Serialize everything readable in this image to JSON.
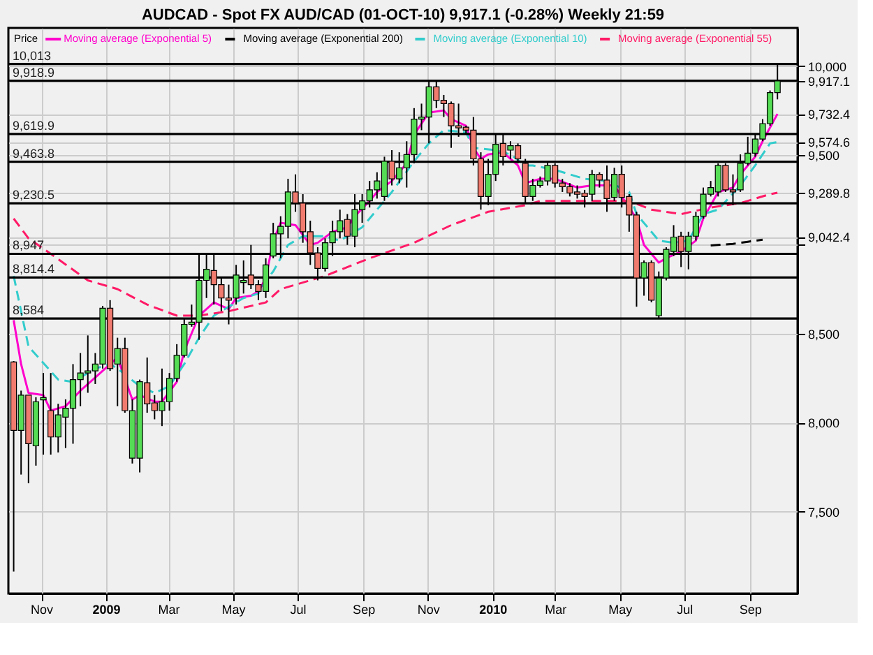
{
  "chart_data": {
    "type": "candlestick",
    "title": "AUDCAD - Spot FX AUD/CAD (01-OCT-10)  9,917.1 (-0.28%)  Weekly 21:59",
    "ylabel": "Price",
    "xlim": [
      "2008-10-01",
      "2010-10-16"
    ],
    "xticks": [
      {
        "value": "2008-11-01",
        "label": "Nov"
      },
      {
        "value": "2009-01-01",
        "label": "2009"
      },
      {
        "value": "2009-03-01",
        "label": "Mar"
      },
      {
        "value": "2009-05-01",
        "label": "May"
      },
      {
        "value": "2009-07-01",
        "label": "Jul"
      },
      {
        "value": "2009-09-01",
        "label": "Sep"
      },
      {
        "value": "2009-11-01",
        "label": "Nov"
      },
      {
        "value": "2010-01-01",
        "label": "2010"
      },
      {
        "value": "2010-03-01",
        "label": "Mar"
      },
      {
        "value": "2010-05-01",
        "label": "May"
      },
      {
        "value": "2010-07-01",
        "label": "Jul"
      },
      {
        "value": "2010-09-01",
        "label": "Sep"
      }
    ],
    "ylim": [
      7040,
      10215
    ],
    "yticks": [
      {
        "value": 7500,
        "label": "7,500"
      },
      {
        "value": 8000,
        "label": "8,000"
      },
      {
        "value": 8500,
        "label": "8,500"
      },
      {
        "value": 9000,
        "label": null
      },
      {
        "value": 9500,
        "label": "9,500"
      },
      {
        "value": 10000,
        "label": "10,000"
      },
      {
        "value": 9917.1,
        "label": "9,917.1"
      },
      {
        "value": 9732.4,
        "label": "9,732.4"
      },
      {
        "value": 9574.6,
        "label": "9,574.6"
      },
      {
        "value": 9289.8,
        "label": "9,289.8"
      },
      {
        "value": 9042.4,
        "label": "9,042.4"
      }
    ],
    "grid": true,
    "legend": "top left",
    "x": [
      "2008-10-06",
      "2008-10-13",
      "2008-10-20",
      "2008-10-27",
      "2008-11-03",
      "2008-11-10",
      "2008-11-17",
      "2008-11-24",
      "2008-12-01",
      "2008-12-08",
      "2008-12-15",
      "2008-12-22",
      "2008-12-29",
      "2009-01-05",
      "2009-01-12",
      "2009-01-19",
      "2009-01-26",
      "2009-02-02",
      "2009-02-09",
      "2009-02-16",
      "2009-02-23",
      "2009-03-02",
      "2009-03-09",
      "2009-03-16",
      "2009-03-23",
      "2009-03-30",
      "2009-04-06",
      "2009-04-13",
      "2009-04-20",
      "2009-04-27",
      "2009-05-04",
      "2009-05-11",
      "2009-05-18",
      "2009-05-25",
      "2009-06-01",
      "2009-06-08",
      "2009-06-15",
      "2009-06-22",
      "2009-06-29",
      "2009-07-06",
      "2009-07-13",
      "2009-07-20",
      "2009-07-27",
      "2009-08-03",
      "2009-08-10",
      "2009-08-17",
      "2009-08-24",
      "2009-08-31",
      "2009-09-07",
      "2009-09-14",
      "2009-09-21",
      "2009-09-28",
      "2009-10-05",
      "2009-10-12",
      "2009-10-19",
      "2009-10-26",
      "2009-11-02",
      "2009-11-09",
      "2009-11-16",
      "2009-11-23",
      "2009-11-30",
      "2009-12-07",
      "2009-12-14",
      "2009-12-21",
      "2009-12-28",
      "2010-01-04",
      "2010-01-11",
      "2010-01-18",
      "2010-01-25",
      "2010-02-01",
      "2010-02-08",
      "2010-02-15",
      "2010-02-22",
      "2010-03-01",
      "2010-03-08",
      "2010-03-15",
      "2010-03-22",
      "2010-03-29",
      "2010-04-05",
      "2010-04-12",
      "2010-04-19",
      "2010-04-26",
      "2010-05-03",
      "2010-05-10",
      "2010-05-17",
      "2010-05-24",
      "2010-05-31",
      "2010-06-07",
      "2010-06-14",
      "2010-06-21",
      "2010-06-28",
      "2010-07-05",
      "2010-07-12",
      "2010-07-19",
      "2010-07-26",
      "2010-08-02",
      "2010-08-09",
      "2010-08-16",
      "2010-08-23",
      "2010-08-30",
      "2010-09-06",
      "2010-09-13",
      "2010-09-20",
      "2010-09-27"
    ],
    "ohlc": [
      [
        8340,
        8345,
        7163,
        7956
      ],
      [
        7956,
        8179,
        7708,
        8154
      ],
      [
        8154,
        8154,
        7659,
        7881
      ],
      [
        7869,
        8142,
        7758,
        8117
      ],
      [
        8127,
        8278,
        7820,
        8140
      ],
      [
        8067,
        8278,
        7820,
        7919
      ],
      [
        7919,
        8105,
        7832,
        8043
      ],
      [
        8030,
        8130,
        7857,
        8080
      ],
      [
        8080,
        8328,
        7881,
        8241
      ],
      [
        8241,
        8390,
        8092,
        8278
      ],
      [
        8278,
        8489,
        8167,
        8290
      ],
      [
        8290,
        8390,
        8216,
        8328
      ],
      [
        8328,
        8655,
        8303,
        8642
      ],
      [
        8642,
        8687,
        8290,
        8303
      ],
      [
        8328,
        8476,
        8092,
        8415
      ],
      [
        8415,
        8476,
        8055,
        8067
      ],
      [
        7800,
        8130,
        7770,
        8067
      ],
      [
        7800,
        8241,
        7720,
        8229
      ],
      [
        8223,
        8365,
        8055,
        8105
      ],
      [
        8110,
        8154,
        8018,
        8067
      ],
      [
        8067,
        8303,
        7980,
        8117
      ],
      [
        8117,
        8278,
        8067,
        8248
      ],
      [
        8248,
        8440,
        8229,
        8377
      ],
      [
        8377,
        8588,
        8365,
        8551
      ],
      [
        8551,
        8662,
        8538,
        8563
      ],
      [
        8563,
        8947,
        8464,
        8798
      ],
      [
        8798,
        8947,
        8699,
        8860
      ],
      [
        8853,
        8947,
        8662,
        8774
      ],
      [
        8774,
        8811,
        8625,
        8699
      ],
      [
        8699,
        8774,
        8551,
        8687
      ],
      [
        8699,
        8885,
        8662,
        8828
      ],
      [
        8786,
        8910,
        8724,
        8798
      ],
      [
        8828,
        8997,
        8749,
        8774
      ],
      [
        8774,
        8799,
        8687,
        8736
      ],
      [
        8736,
        8922,
        8699,
        8885
      ],
      [
        8935,
        9121,
        8922,
        9059
      ],
      [
        9059,
        9158,
        8922,
        9101
      ],
      [
        9101,
        9368,
        9034,
        9294
      ],
      [
        9294,
        9393,
        9183,
        9232
      ],
      [
        9232,
        9282,
        9009,
        9071
      ],
      [
        9071,
        9133,
        8885,
        8952
      ],
      [
        8952,
        8984,
        8798,
        8865
      ],
      [
        8865,
        9034,
        8848,
        9009
      ],
      [
        9009,
        9133,
        8935,
        9071
      ],
      [
        9071,
        9195,
        9034,
        9133
      ],
      [
        9140,
        9170,
        8997,
        9046
      ],
      [
        9046,
        9282,
        8984,
        9195
      ],
      [
        9195,
        9282,
        9121,
        9244
      ],
      [
        9244,
        9356,
        9207,
        9306
      ],
      [
        9306,
        9405,
        9257,
        9356
      ],
      [
        9269,
        9492,
        9244,
        9467
      ],
      [
        9467,
        9529,
        9331,
        9368
      ],
      [
        9368,
        9517,
        9343,
        9430
      ],
      [
        9430,
        9579,
        9319,
        9504
      ],
      [
        9504,
        9765,
        9455,
        9703
      ],
      [
        9703,
        9790,
        9641,
        9715
      ],
      [
        9715,
        9914,
        9567,
        9884
      ],
      [
        9884,
        9914,
        9765,
        9809
      ],
      [
        9809,
        9839,
        9715,
        9790
      ],
      [
        9790,
        9802,
        9542,
        9666
      ],
      [
        9666,
        9790,
        9604,
        9654
      ],
      [
        9658,
        9666,
        9616,
        9641
      ],
      [
        9641,
        9715,
        9443,
        9480
      ],
      [
        9480,
        9517,
        9195,
        9269
      ],
      [
        9269,
        9480,
        9220,
        9393
      ],
      [
        9393,
        9616,
        9356,
        9562
      ],
      [
        9567,
        9616,
        9443,
        9492
      ],
      [
        9529,
        9579,
        9480,
        9554
      ],
      [
        9554,
        9567,
        9455,
        9480
      ],
      [
        9455,
        9480,
        9232,
        9269
      ],
      [
        9269,
        9368,
        9244,
        9331
      ],
      [
        9331,
        9381,
        9319,
        9356
      ],
      [
        9356,
        9467,
        9331,
        9443
      ],
      [
        9443,
        9455,
        9319,
        9344
      ],
      [
        9344,
        9368,
        9294,
        9324
      ],
      [
        9324,
        9344,
        9269,
        9289
      ],
      [
        9294,
        9331,
        9257,
        9282
      ],
      [
        9287,
        9306,
        9207,
        9269
      ],
      [
        9282,
        9418,
        9244,
        9393
      ],
      [
        9393,
        9405,
        9319,
        9361
      ],
      [
        9361,
        9443,
        9183,
        9257
      ],
      [
        9264,
        9430,
        9244,
        9393
      ],
      [
        9393,
        9443,
        9207,
        9264
      ],
      [
        9269,
        9282,
        9071,
        9165
      ],
      [
        9165,
        9183,
        8650,
        8811
      ],
      [
        8811,
        8910,
        8712,
        8898
      ],
      [
        8898,
        8910,
        8675,
        8687
      ],
      [
        8600,
        8848,
        8588,
        8811
      ],
      [
        8811,
        8984,
        8798,
        8972
      ],
      [
        8960,
        9108,
        8935,
        9041
      ],
      [
        9046,
        9071,
        8873,
        8960
      ],
      [
        8960,
        9071,
        8860,
        9046
      ],
      [
        9046,
        9183,
        9022,
        9158
      ],
      [
        9158,
        9319,
        9145,
        9282
      ],
      [
        9282,
        9356,
        9269,
        9319
      ],
      [
        9294,
        9455,
        9269,
        9443
      ],
      [
        9443,
        9455,
        9294,
        9306
      ],
      [
        9306,
        9393,
        9220,
        9294
      ],
      [
        9306,
        9505,
        9294,
        9455
      ],
      [
        9455,
        9604,
        9443,
        9512
      ],
      [
        9512,
        9616,
        9492,
        9591
      ],
      [
        9591,
        9703,
        9579,
        9678
      ],
      [
        9678,
        9864,
        9666,
        9852
      ],
      [
        9852,
        10013,
        9814,
        9917.1
      ]
    ],
    "series": [
      {
        "name": "Moving average (Exponential 5)",
        "color": "#ff00cc",
        "type": "line",
        "line_style": "solid",
        "x": [
          "2008-10-06",
          "2008-10-13",
          "2008-10-20",
          "2008-11-03",
          "2008-11-10",
          "2008-11-24",
          "2008-12-08",
          "2008-12-22",
          "2009-01-12",
          "2009-01-26",
          "2009-02-02",
          "2009-02-16",
          "2009-02-23",
          "2009-03-09",
          "2009-03-16",
          "2009-03-30",
          "2009-04-13",
          "2009-04-27",
          "2009-05-04",
          "2009-05-18",
          "2009-05-25",
          "2009-06-01",
          "2009-06-08",
          "2009-06-15",
          "2009-06-29",
          "2009-07-13",
          "2009-07-20",
          "2009-08-03",
          "2009-08-17",
          "2009-08-24",
          "2009-09-07",
          "2009-09-14",
          "2009-09-28",
          "2009-10-12",
          "2009-10-19",
          "2009-11-02",
          "2009-11-16",
          "2009-11-23",
          "2009-12-07",
          "2009-12-14",
          "2009-12-21",
          "2009-12-28",
          "2010-01-11",
          "2010-01-25",
          "2010-02-01",
          "2010-02-15",
          "2010-03-01",
          "2010-03-22",
          "2010-04-05",
          "2010-04-26",
          "2010-05-03",
          "2010-05-17",
          "2010-05-24",
          "2010-06-07",
          "2010-06-14",
          "2010-06-28",
          "2010-07-12",
          "2010-07-19",
          "2010-08-02",
          "2010-08-16",
          "2010-08-23",
          "2010-09-06",
          "2010-09-13",
          "2010-09-27"
        ],
        "values": [
          8575,
          8328,
          8166,
          8154,
          8067,
          8092,
          8179,
          8253,
          8365,
          8129,
          8154,
          8117,
          8117,
          8228,
          8402,
          8600,
          8674,
          8637,
          8699,
          8712,
          8736,
          8810,
          9021,
          9121,
          9108,
          8997,
          9009,
          9071,
          9096,
          9158,
          9244,
          9294,
          9356,
          9455,
          9616,
          9740,
          9752,
          9703,
          9666,
          9542,
          9480,
          9505,
          9517,
          9443,
          9344,
          9368,
          9368,
          9319,
          9331,
          9331,
          9269,
          9145,
          8997,
          8898,
          8923,
          8960,
          9021,
          9145,
          9294,
          9319,
          9393,
          9492,
          9579,
          9732.4
        ]
      },
      {
        "name": "Moving average (Exponential 200)",
        "color": "#000000",
        "type": "line",
        "line_style": "dashed",
        "x": [
          "2010-07-26",
          "2010-08-16",
          "2010-08-30",
          "2010-09-13"
        ],
        "values": [
          8994,
          9003,
          9015,
          9026
        ]
      },
      {
        "name": "Moving average (Exponential 10)",
        "color": "#33cccc",
        "type": "line",
        "line_style": "dashed",
        "x": [
          "2008-10-06",
          "2008-10-20",
          "2008-11-17",
          "2008-12-01",
          "2008-12-22",
          "2009-01-05",
          "2009-01-12",
          "2009-02-02",
          "2009-02-16",
          "2009-03-02",
          "2009-03-16",
          "2009-03-30",
          "2009-04-13",
          "2009-04-27",
          "2009-05-11",
          "2009-05-25",
          "2009-06-01",
          "2009-06-08",
          "2009-06-22",
          "2009-07-06",
          "2009-07-27",
          "2009-08-10",
          "2009-08-31",
          "2009-09-14",
          "2009-09-28",
          "2009-10-19",
          "2009-11-02",
          "2009-11-16",
          "2009-12-07",
          "2009-12-14",
          "2010-01-04",
          "2010-01-18",
          "2010-02-01",
          "2010-02-08",
          "2010-03-01",
          "2010-03-29",
          "2010-04-19",
          "2010-05-10",
          "2010-05-17",
          "2010-06-07",
          "2010-06-21",
          "2010-07-05",
          "2010-07-19",
          "2010-08-02",
          "2010-08-23",
          "2010-09-06",
          "2010-09-20",
          "2010-09-27"
        ],
        "values": [
          8823,
          8427,
          8241,
          8228,
          8303,
          8328,
          8303,
          8204,
          8166,
          8204,
          8328,
          8476,
          8600,
          8650,
          8699,
          8724,
          8798,
          8848,
          8997,
          9046,
          9046,
          9021,
          9096,
          9195,
          9294,
          9467,
          9567,
          9641,
          9629,
          9542,
          9529,
          9505,
          9443,
          9443,
          9418,
          9368,
          9356,
          9294,
          9170,
          9021,
          9009,
          9021,
          9170,
          9195,
          9331,
          9443,
          9567,
          9574.6
        ]
      },
      {
        "name": "Moving average (Exponential 55)",
        "color": "#ff1a66",
        "type": "line",
        "line_style": "dashed",
        "x": [
          "2008-10-06",
          "2008-10-20",
          "2008-11-10",
          "2008-12-15",
          "2009-01-12",
          "2009-02-09",
          "2009-03-09",
          "2009-03-30",
          "2009-04-27",
          "2009-06-01",
          "2009-06-15",
          "2009-07-27",
          "2009-09-07",
          "2009-10-19",
          "2009-11-23",
          "2009-12-28",
          "2010-02-01",
          "2010-02-15",
          "2010-03-29",
          "2010-05-10",
          "2010-05-31",
          "2010-06-28",
          "2010-07-26",
          "2010-08-23",
          "2010-09-20",
          "2010-09-27"
        ],
        "values": [
          9145,
          9034,
          8947,
          8798,
          8749,
          8662,
          8600,
          8600,
          8625,
          8674,
          8749,
          8823,
          8922,
          9009,
          9108,
          9183,
          9220,
          9244,
          9244,
          9244,
          9195,
          9170,
          9207,
          9232,
          9282,
          9289.8
        ]
      }
    ],
    "ref_lines": [
      {
        "axis": "y",
        "value": 10013,
        "label": "10,013",
        "color": "#000000"
      },
      {
        "axis": "y",
        "value": 9918.9,
        "label": "9,918.9",
        "color": "#000000"
      },
      {
        "axis": "y",
        "value": 9619.9,
        "label": "9,619.9",
        "color": "#000000"
      },
      {
        "axis": "y",
        "value": 9463.8,
        "label": "9,463.8",
        "color": "#000000"
      },
      {
        "axis": "y",
        "value": 9230.5,
        "label": "9,230.5",
        "color": "#000000"
      },
      {
        "axis": "y",
        "value": 8947,
        "label": "8,947",
        "color": "#000000"
      },
      {
        "axis": "y",
        "value": 8814.4,
        "label": "8,814.4",
        "color": "#000000"
      },
      {
        "axis": "y",
        "value": 8584,
        "label": "8,584",
        "color": "#000000"
      }
    ]
  }
}
